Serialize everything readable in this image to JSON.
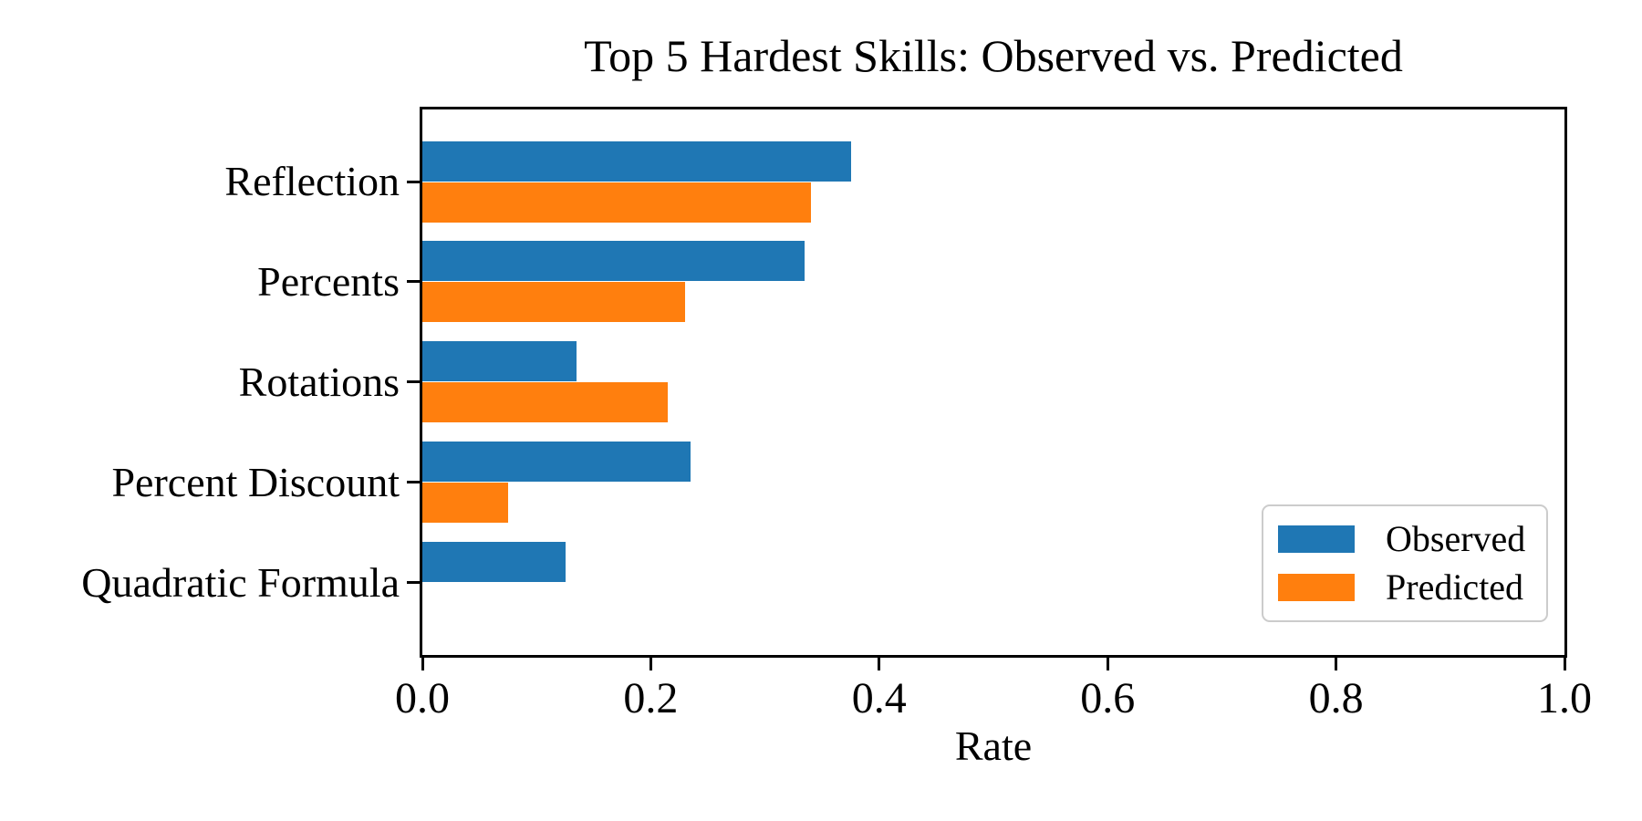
{
  "chart_data": {
    "type": "bar",
    "orientation": "horizontal",
    "title": "Top 5 Hardest Skills: Observed vs. Predicted",
    "xlabel": "Rate",
    "ylabel": "",
    "categories": [
      "Reflection",
      "Percents",
      "Rotations",
      "Percent Discount",
      "Quadratic Formula"
    ],
    "series": [
      {
        "name": "Observed",
        "color": "#1f77b4",
        "values": [
          0.375,
          0.335,
          0.135,
          0.235,
          0.125
        ]
      },
      {
        "name": "Predicted",
        "color": "#ff7f0e",
        "values": [
          0.34,
          0.23,
          0.215,
          0.075,
          0.0
        ]
      }
    ],
    "xlim": [
      0.0,
      1.0
    ],
    "xticks": [
      {
        "value": 0.0,
        "label": "0.0"
      },
      {
        "value": 0.2,
        "label": "0.2"
      },
      {
        "value": 0.4,
        "label": "0.4"
      },
      {
        "value": 0.6,
        "label": "0.6"
      },
      {
        "value": 0.8,
        "label": "0.8"
      },
      {
        "value": 1.0,
        "label": "1.0"
      }
    ],
    "legend": {
      "position": "lower-right",
      "entries": [
        "Observed",
        "Predicted"
      ]
    },
    "grid": false,
    "colors": {
      "axis": "#000000",
      "background": "#ffffff",
      "legend_border": "#cccccc"
    }
  }
}
